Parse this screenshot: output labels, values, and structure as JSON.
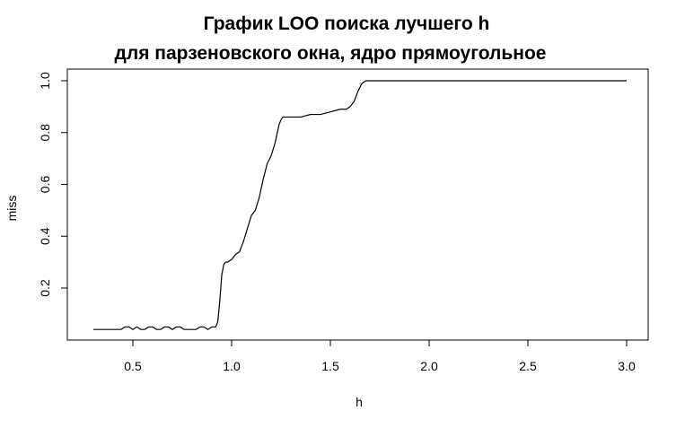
{
  "chart_data": {
    "type": "line",
    "title": "График LOO поиска лучшего h",
    "subtitle": "для парзеновского окна, ядро прямоугольное",
    "xlabel": "h",
    "ylabel": "miss",
    "xlim": [
      0.3,
      3.0
    ],
    "ylim": [
      0.04,
      1.0
    ],
    "x_ticks": [
      0.5,
      1.0,
      1.5,
      2.0,
      2.5,
      3.0
    ],
    "x_tick_labels": [
      "0.5",
      "1.0",
      "1.5",
      "2.0",
      "2.5",
      "3.0"
    ],
    "y_ticks": [
      0.2,
      0.4,
      0.6,
      0.8,
      1.0
    ],
    "y_tick_labels": [
      "0.2",
      "0.4",
      "0.6",
      "0.8",
      "1.0"
    ],
    "grid": false,
    "legend": "none",
    "line_color": "#000000",
    "series": [
      {
        "x": [
          0.3,
          0.44,
          0.46,
          0.48,
          0.5,
          0.52,
          0.54,
          0.56,
          0.58,
          0.6,
          0.62,
          0.64,
          0.66,
          0.68,
          0.7,
          0.72,
          0.74,
          0.76,
          0.78,
          0.8,
          0.82,
          0.84,
          0.86,
          0.88,
          0.9,
          0.92,
          0.93,
          0.94,
          0.95,
          0.96,
          0.97,
          0.98,
          1.0,
          1.02,
          1.04,
          1.06,
          1.08,
          1.1,
          1.12,
          1.14,
          1.16,
          1.18,
          1.2,
          1.22,
          1.24,
          1.25,
          1.26,
          1.28,
          1.3,
          1.35,
          1.4,
          1.45,
          1.5,
          1.55,
          1.58,
          1.6,
          1.62,
          1.64,
          1.66,
          1.68,
          1.7,
          3.0
        ],
        "y": [
          0.04,
          0.04,
          0.05,
          0.05,
          0.04,
          0.05,
          0.04,
          0.04,
          0.05,
          0.05,
          0.04,
          0.04,
          0.05,
          0.05,
          0.04,
          0.05,
          0.05,
          0.04,
          0.04,
          0.04,
          0.04,
          0.05,
          0.05,
          0.04,
          0.05,
          0.05,
          0.07,
          0.15,
          0.25,
          0.29,
          0.3,
          0.3,
          0.31,
          0.33,
          0.34,
          0.38,
          0.43,
          0.48,
          0.5,
          0.55,
          0.62,
          0.68,
          0.71,
          0.76,
          0.83,
          0.85,
          0.86,
          0.86,
          0.86,
          0.86,
          0.87,
          0.87,
          0.88,
          0.89,
          0.89,
          0.9,
          0.92,
          0.96,
          0.99,
          1.0,
          1.0,
          1.0
        ]
      }
    ]
  }
}
